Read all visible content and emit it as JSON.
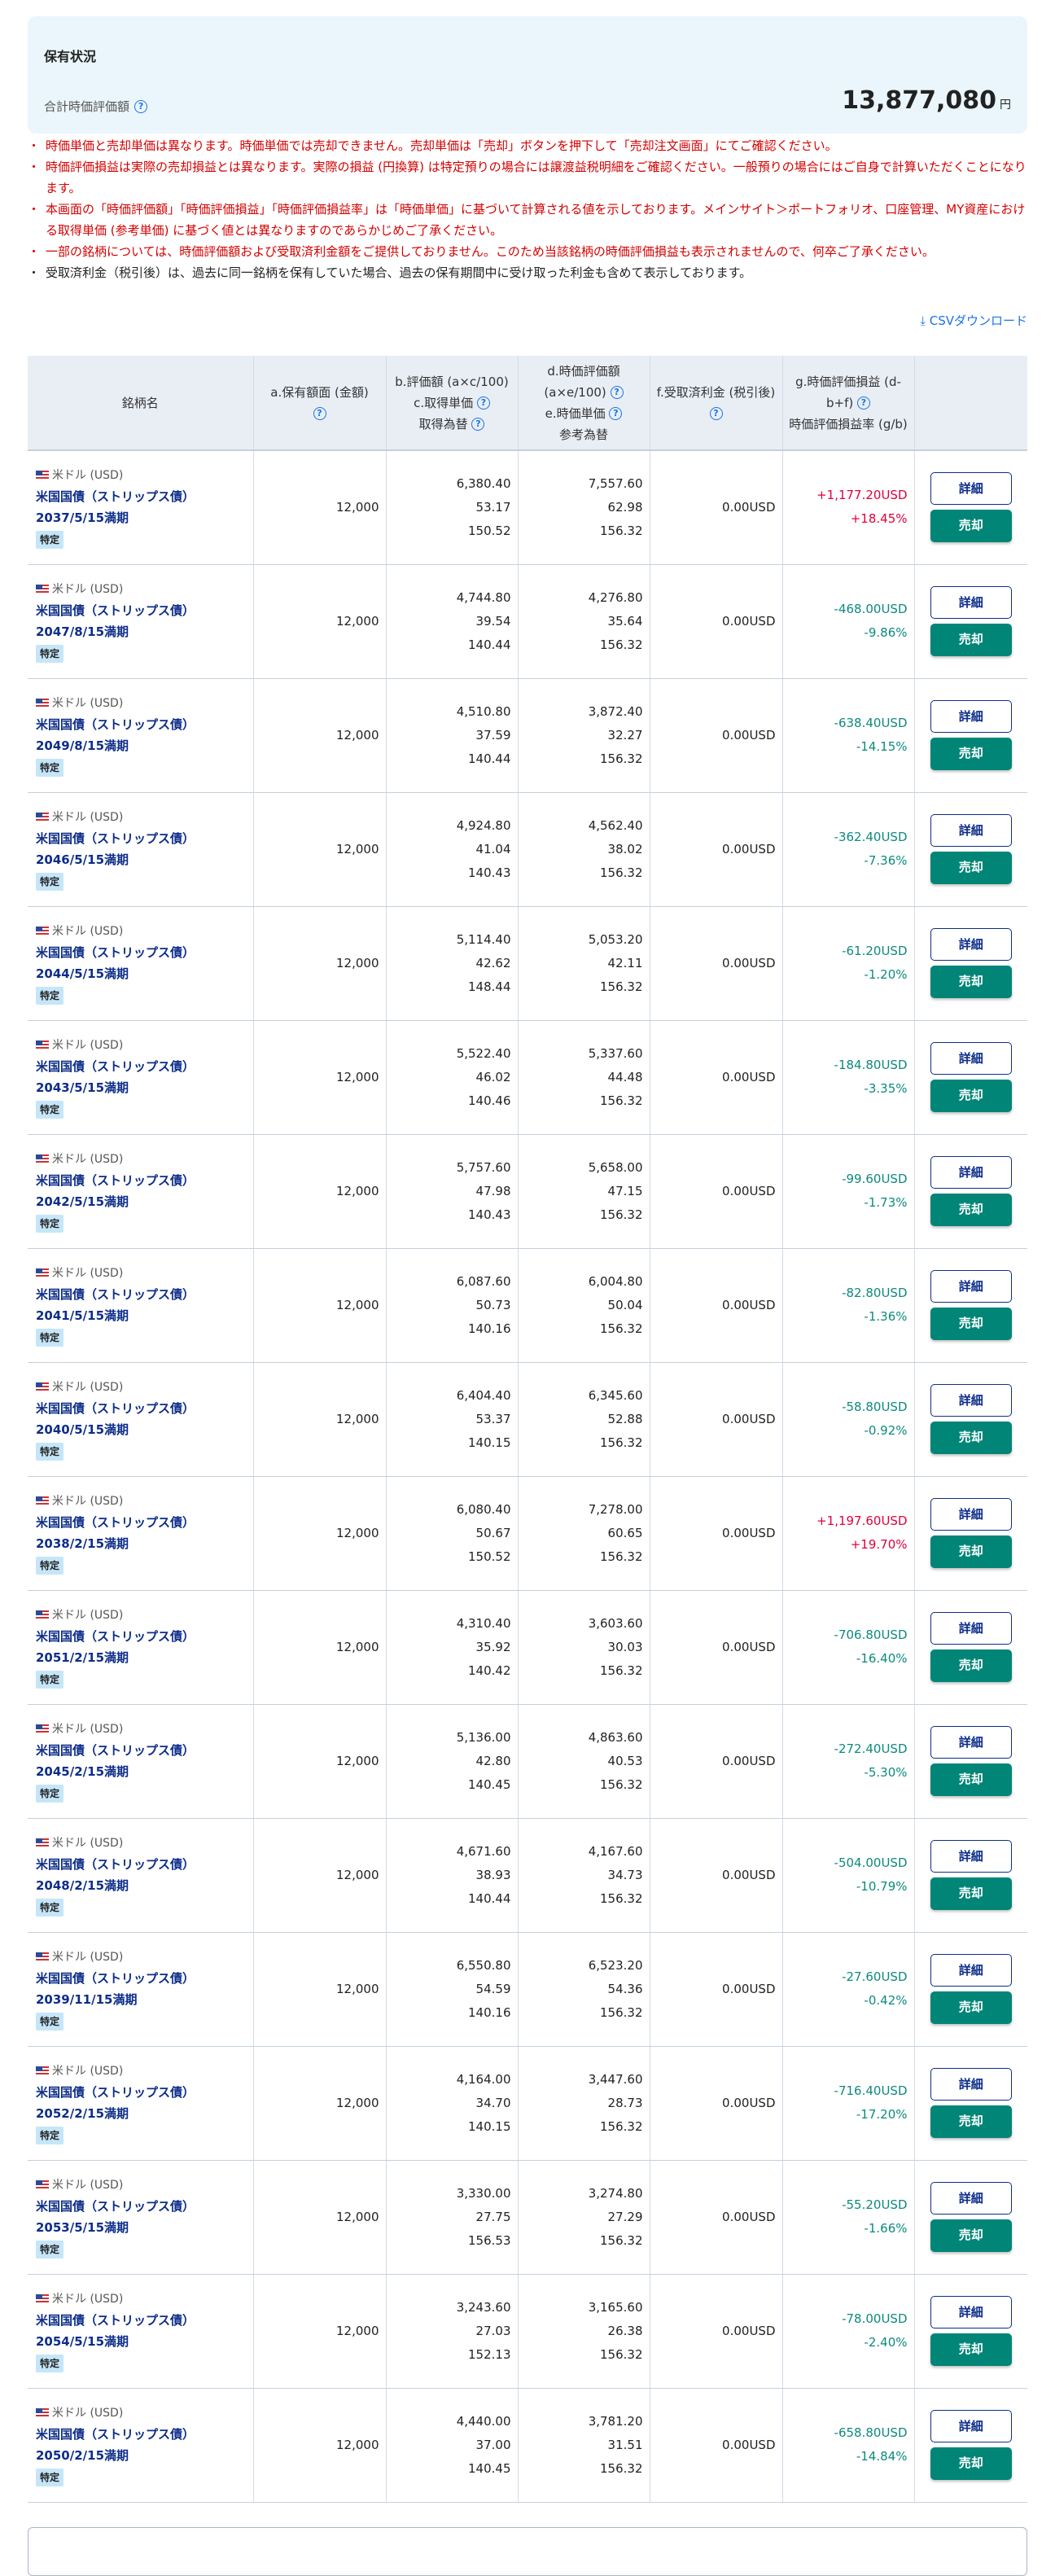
{
  "summary": {
    "title": "保有状況",
    "total_label": "合計時価評価額",
    "total_value": "13,877,080",
    "currency": "円"
  },
  "notes": [
    {
      "text": "時価単価と売却単価は異なります。時価単価では売却できません。売却単価は「売却」ボタンを押下して「売却注文画面」にてご確認ください。",
      "color": "red"
    },
    {
      "text": "時価評価損益は実際の売却損益とは異なります。実際の損益 (円換算) は特定預りの場合には譲渡益税明細をご確認ください。一般預りの場合にはご自身で計算いただくことになります。",
      "color": "red"
    },
    {
      "text": "本画面の「時価評価額」「時価評価損益」「時価評価損益率」は「時価単価」に基づいて計算される値を示しております。メインサイト＞ポートフォリオ、口座管理、MY資産における取得単価 (参考単価) に基づく値とは異なりますのであらかじめご了承ください。",
      "color": "red"
    },
    {
      "text": "一部の銘柄については、時価評価額および受取済利金額をご提供しておりません。このため当該銘柄の時価評価損益も表示されませんので、何卒ご了承ください。",
      "color": "red"
    },
    {
      "text": "受取済利金（税引後）は、過去に同一銘柄を保有していた場合、過去の保有期間中に受け取った利金も含めて表示しております。",
      "color": "black"
    }
  ],
  "csv_label": "CSVダウンロード",
  "colors": {
    "positive": "#e0003c",
    "negative": "#0d8a7e",
    "sell_button": "#008577",
    "link": "#1a73e8",
    "bond_name": "#0d2d8a"
  },
  "table": {
    "headers": {
      "name": "銘柄名",
      "a": "a.保有額面 (金額)",
      "b": "b.評価額 (a×c/100)",
      "c": "c.取得単価",
      "c2": "取得為替",
      "d": "d.時価評価額 (a×e/100)",
      "e": "e.時価単価",
      "e2": "参考為替",
      "f": "f.受取済利金 (税引後)",
      "g": "g.時価評価損益 (d-b+f)",
      "g2": "時価評価損益率 (g/b)"
    },
    "currency_label": "米ドル (USD)",
    "bond_name": "米国国債（ストリップス債）",
    "tag": "特定",
    "detail_label": "詳細",
    "sell_label": "売却",
    "rows": [
      {
        "maturity": "2037/5/15満期",
        "a": "12,000",
        "b": "6,380.40",
        "c": "53.17",
        "cfx": "150.52",
        "d": "7,557.60",
        "e": "62.98",
        "efx": "156.32",
        "f": "0.00USD",
        "g": "+1,177.20USD",
        "rate": "+18.45%"
      },
      {
        "maturity": "2047/8/15満期",
        "a": "12,000",
        "b": "4,744.80",
        "c": "39.54",
        "cfx": "140.44",
        "d": "4,276.80",
        "e": "35.64",
        "efx": "156.32",
        "f": "0.00USD",
        "g": "-468.00USD",
        "rate": "-9.86%"
      },
      {
        "maturity": "2049/8/15満期",
        "a": "12,000",
        "b": "4,510.80",
        "c": "37.59",
        "cfx": "140.44",
        "d": "3,872.40",
        "e": "32.27",
        "efx": "156.32",
        "f": "0.00USD",
        "g": "-638.40USD",
        "rate": "-14.15%"
      },
      {
        "maturity": "2046/5/15満期",
        "a": "12,000",
        "b": "4,924.80",
        "c": "41.04",
        "cfx": "140.43",
        "d": "4,562.40",
        "e": "38.02",
        "efx": "156.32",
        "f": "0.00USD",
        "g": "-362.40USD",
        "rate": "-7.36%"
      },
      {
        "maturity": "2044/5/15満期",
        "a": "12,000",
        "b": "5,114.40",
        "c": "42.62",
        "cfx": "148.44",
        "d": "5,053.20",
        "e": "42.11",
        "efx": "156.32",
        "f": "0.00USD",
        "g": "-61.20USD",
        "rate": "-1.20%"
      },
      {
        "maturity": "2043/5/15満期",
        "a": "12,000",
        "b": "5,522.40",
        "c": "46.02",
        "cfx": "140.46",
        "d": "5,337.60",
        "e": "44.48",
        "efx": "156.32",
        "f": "0.00USD",
        "g": "-184.80USD",
        "rate": "-3.35%"
      },
      {
        "maturity": "2042/5/15満期",
        "a": "12,000",
        "b": "5,757.60",
        "c": "47.98",
        "cfx": "140.43",
        "d": "5,658.00",
        "e": "47.15",
        "efx": "156.32",
        "f": "0.00USD",
        "g": "-99.60USD",
        "rate": "-1.73%"
      },
      {
        "maturity": "2041/5/15満期",
        "a": "12,000",
        "b": "6,087.60",
        "c": "50.73",
        "cfx": "140.16",
        "d": "6,004.80",
        "e": "50.04",
        "efx": "156.32",
        "f": "0.00USD",
        "g": "-82.80USD",
        "rate": "-1.36%"
      },
      {
        "maturity": "2040/5/15満期",
        "a": "12,000",
        "b": "6,404.40",
        "c": "53.37",
        "cfx": "140.15",
        "d": "6,345.60",
        "e": "52.88",
        "efx": "156.32",
        "f": "0.00USD",
        "g": "-58.80USD",
        "rate": "-0.92%"
      },
      {
        "maturity": "2038/2/15満期",
        "a": "12,000",
        "b": "6,080.40",
        "c": "50.67",
        "cfx": "150.52",
        "d": "7,278.00",
        "e": "60.65",
        "efx": "156.32",
        "f": "0.00USD",
        "g": "+1,197.60USD",
        "rate": "+19.70%"
      },
      {
        "maturity": "2051/2/15満期",
        "a": "12,000",
        "b": "4,310.40",
        "c": "35.92",
        "cfx": "140.42",
        "d": "3,603.60",
        "e": "30.03",
        "efx": "156.32",
        "f": "0.00USD",
        "g": "-706.80USD",
        "rate": "-16.40%"
      },
      {
        "maturity": "2045/2/15満期",
        "a": "12,000",
        "b": "5,136.00",
        "c": "42.80",
        "cfx": "140.45",
        "d": "4,863.60",
        "e": "40.53",
        "efx": "156.32",
        "f": "0.00USD",
        "g": "-272.40USD",
        "rate": "-5.30%"
      },
      {
        "maturity": "2048/2/15満期",
        "a": "12,000",
        "b": "4,671.60",
        "c": "38.93",
        "cfx": "140.44",
        "d": "4,167.60",
        "e": "34.73",
        "efx": "156.32",
        "f": "0.00USD",
        "g": "-504.00USD",
        "rate": "-10.79%"
      },
      {
        "maturity": "2039/11/15満期",
        "a": "12,000",
        "b": "6,550.80",
        "c": "54.59",
        "cfx": "140.16",
        "d": "6,523.20",
        "e": "54.36",
        "efx": "156.32",
        "f": "0.00USD",
        "g": "-27.60USD",
        "rate": "-0.42%"
      },
      {
        "maturity": "2052/2/15満期",
        "a": "12,000",
        "b": "4,164.00",
        "c": "34.70",
        "cfx": "140.15",
        "d": "3,447.60",
        "e": "28.73",
        "efx": "156.32",
        "f": "0.00USD",
        "g": "-716.40USD",
        "rate": "-17.20%"
      },
      {
        "maturity": "2053/5/15満期",
        "a": "12,000",
        "b": "3,330.00",
        "c": "27.75",
        "cfx": "156.53",
        "d": "3,274.80",
        "e": "27.29",
        "efx": "156.32",
        "f": "0.00USD",
        "g": "-55.20USD",
        "rate": "-1.66%"
      },
      {
        "maturity": "2054/5/15満期",
        "a": "12,000",
        "b": "3,243.60",
        "c": "27.03",
        "cfx": "152.13",
        "d": "3,165.60",
        "e": "26.38",
        "efx": "156.32",
        "f": "0.00USD",
        "g": "-78.00USD",
        "rate": "-2.40%"
      },
      {
        "maturity": "2050/2/15満期",
        "a": "12,000",
        "b": "4,440.00",
        "c": "37.00",
        "cfx": "140.45",
        "d": "3,781.20",
        "e": "31.51",
        "efx": "156.32",
        "f": "0.00USD",
        "g": "-658.80USD",
        "rate": "-14.84%"
      }
    ]
  }
}
